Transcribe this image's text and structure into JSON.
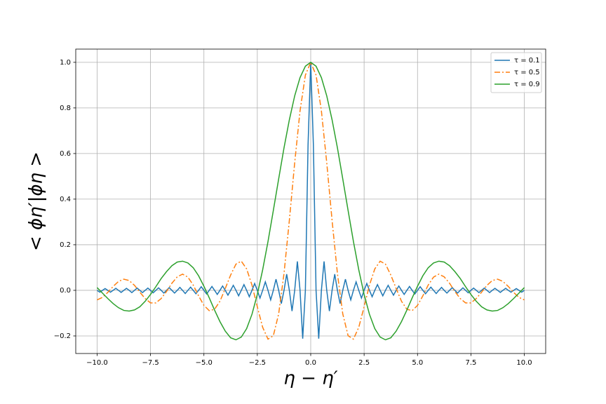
{
  "chart_data": {
    "type": "line",
    "xlabel": "η − η′",
    "ylabel": "< ϕη′|ϕη >",
    "xlim": [
      -11,
      11
    ],
    "ylim": [
      -0.277,
      1.058
    ],
    "xticks": [
      {
        "value": -10,
        "label": "−10.0"
      },
      {
        "value": -7.5,
        "label": "−7.5"
      },
      {
        "value": -5,
        "label": "−5.0"
      },
      {
        "value": -2.5,
        "label": "−2.5"
      },
      {
        "value": 0,
        "label": "0.0"
      },
      {
        "value": 2.5,
        "label": "2.5"
      },
      {
        "value": 5,
        "label": "5.0"
      },
      {
        "value": 7.5,
        "label": "7.5"
      },
      {
        "value": 10,
        "label": "10.0"
      }
    ],
    "yticks": [
      {
        "value": -0.2,
        "label": "−0.2"
      },
      {
        "value": 0,
        "label": "0.0"
      },
      {
        "value": 0.2,
        "label": "0.2"
      },
      {
        "value": 0.4,
        "label": "0.4"
      },
      {
        "value": 0.6,
        "label": "0.6"
      },
      {
        "value": 0.8,
        "label": "0.8"
      },
      {
        "value": 1,
        "label": "1.0"
      }
    ],
    "grid": true,
    "legend": "upper right",
    "series": [
      {
        "name": "τ = 0.1",
        "color": "#1f77b4",
        "dash": "none",
        "x": [
          -10,
          -9.875,
          -9.75,
          -9.625,
          -9.5,
          -9.375,
          -9.25,
          -9.125,
          -9,
          -8.875,
          -8.75,
          -8.625,
          -8.5,
          -8.375,
          -8.25,
          -8.125,
          -8,
          -7.875,
          -7.75,
          -7.625,
          -7.5,
          -7.375,
          -7.25,
          -7.125,
          -7,
          -6.875,
          -6.75,
          -6.625,
          -6.5,
          -6.375,
          -6.25,
          -6.125,
          -6,
          -5.875,
          -5.75,
          -5.625,
          -5.5,
          -5.375,
          -5.25,
          -5.125,
          -5,
          -4.875,
          -4.75,
          -4.625,
          -4.5,
          -4.375,
          -4.25,
          -4.125,
          -4,
          -3.875,
          -3.75,
          -3.625,
          -3.5,
          -3.375,
          -3.25,
          -3.125,
          -3,
          -2.875,
          -2.75,
          -2.625,
          -2.5,
          -2.375,
          -2.25,
          -2.125,
          -2,
          -1.875,
          -1.75,
          -1.625,
          -1.5,
          -1.375,
          -1.25,
          -1.125,
          -1,
          -0.875,
          -0.75,
          -0.625,
          -0.5,
          -0.375,
          -0.25,
          -0.125,
          0,
          0.125,
          0.25,
          0.375,
          0.5,
          0.625,
          0.75,
          0.875,
          1,
          1.125,
          1.25,
          1.375,
          1.5,
          1.625,
          1.75,
          1.875,
          2,
          2.125,
          2.25,
          2.375,
          2.5,
          2.625,
          2.75,
          2.875,
          3,
          3.125,
          3.25,
          3.375,
          3.5,
          3.625,
          3.75,
          3.875,
          4,
          4.125,
          4.25,
          4.375,
          4.5,
          4.625,
          4.75,
          4.875,
          5,
          5.125,
          5.25,
          5.375,
          5.5,
          5.625,
          5.75,
          5.875,
          6,
          6.125,
          6.25,
          6.375,
          6.5,
          6.625,
          6.75,
          6.875,
          7,
          7.125,
          7.25,
          7.375,
          7.5,
          7.625,
          7.75,
          7.875,
          8,
          8.125,
          8.25,
          8.375,
          8.5,
          8.625,
          8.75,
          8.875,
          9,
          9.125,
          9.25,
          9.375,
          9.5,
          9.625,
          9.75,
          9.875,
          10
        ],
        "values": [
          0,
          -0.008,
          0,
          0.008,
          0,
          -0.008,
          0,
          0.009,
          0,
          -0.009,
          0,
          0.009,
          0,
          -0.01,
          0,
          0.01,
          0,
          -0.01,
          0,
          0.01,
          0,
          -0.011,
          0,
          0.011,
          0,
          -0.012,
          0,
          0.012,
          0,
          -0.012,
          0,
          0.013,
          0,
          -0.014,
          0,
          0.014,
          0,
          -0.015,
          0,
          0.016,
          0,
          -0.016,
          0,
          0.017,
          0,
          -0.018,
          0,
          0.019,
          0,
          -0.021,
          0,
          0.022,
          0,
          -0.024,
          0,
          0.025,
          0,
          -0.028,
          0,
          0.03,
          0,
          -0.034,
          0,
          0.037,
          0,
          -0.042,
          0,
          0.049,
          0,
          -0.058,
          0,
          0.071,
          0,
          -0.091,
          0,
          0.127,
          0,
          -0.212,
          0,
          0.637,
          1,
          0.637,
          0,
          -0.212,
          0,
          0.127,
          0,
          -0.091,
          0,
          0.071,
          0,
          -0.058,
          0,
          0.049,
          0,
          -0.042,
          0,
          0.037,
          0,
          -0.034,
          0,
          0.03,
          0,
          -0.028,
          0,
          0.025,
          0,
          -0.024,
          0,
          0.022,
          0,
          -0.021,
          0,
          0.019,
          0,
          -0.018,
          0,
          0.017,
          0,
          -0.016,
          0,
          0.016,
          0,
          -0.015,
          0,
          0.014,
          0,
          -0.014,
          0,
          0.013,
          0,
          -0.012,
          0,
          0.012,
          0,
          -0.012,
          0,
          0.011,
          0,
          -0.011,
          0,
          0.01,
          0,
          -0.01,
          0,
          0.01,
          0,
          -0.01,
          0,
          0.009,
          0,
          -0.009,
          0,
          0.009,
          0,
          -0.008,
          0,
          0.008,
          0,
          -0.008,
          0
        ]
      },
      {
        "name": "τ = 0.5",
        "color": "#ff7f0e",
        "dash": "8,3,2,3",
        "x": [
          -10,
          -9.75,
          -9.5,
          -9.25,
          -9,
          -8.75,
          -8.5,
          -8.25,
          -8,
          -7.75,
          -7.5,
          -7.25,
          -7,
          -6.75,
          -6.5,
          -6.25,
          -6,
          -5.75,
          -5.5,
          -5.25,
          -5,
          -4.75,
          -4.5,
          -4.25,
          -4,
          -3.75,
          -3.5,
          -3.25,
          -3,
          -2.75,
          -2.5,
          -2.25,
          -2,
          -1.75,
          -1.5,
          -1.25,
          -1,
          -0.75,
          -0.5,
          -0.25,
          0,
          0.25,
          0.5,
          0.75,
          1,
          1.25,
          1.5,
          1.75,
          2,
          2.25,
          2.5,
          2.75,
          3,
          3.25,
          3.5,
          3.75,
          4,
          4.25,
          4.5,
          4.75,
          5,
          5.25,
          5.5,
          5.75,
          6,
          6.25,
          6.5,
          6.75,
          7,
          7.25,
          7.5,
          7.75,
          8,
          8.25,
          8.5,
          8.75,
          9,
          9.25,
          9.5,
          9.75,
          10
        ],
        "values": [
          -0.042,
          -0.031,
          -0.009,
          0.017,
          0.039,
          0.049,
          0.043,
          0.022,
          -0.008,
          -0.036,
          -0.055,
          -0.055,
          -0.036,
          -0.005,
          0.031,
          0.059,
          0.071,
          0.058,
          0.023,
          -0.024,
          -0.066,
          -0.089,
          -0.083,
          -0.048,
          0.008,
          0.067,
          0.115,
          0.128,
          0.094,
          0.023,
          -0.072,
          -0.162,
          -0.214,
          -0.199,
          -0.103,
          0.074,
          0.307,
          0.56,
          0.787,
          0.944,
          1,
          0.944,
          0.787,
          0.56,
          0.307,
          0.074,
          -0.103,
          -0.199,
          -0.214,
          -0.162,
          -0.072,
          0.023,
          0.094,
          0.128,
          0.115,
          0.067,
          0.008,
          -0.048,
          -0.083,
          -0.089,
          -0.066,
          -0.024,
          0.023,
          0.058,
          0.071,
          0.059,
          0.031,
          -0.005,
          -0.036,
          -0.055,
          -0.055,
          -0.036,
          -0.008,
          0.022,
          0.043,
          0.049,
          0.039,
          0.017,
          -0.009,
          -0.031,
          -0.042
        ]
      },
      {
        "name": "τ = 0.9",
        "color": "#2ca02c",
        "dash": "none",
        "x": [
          -10,
          -9.75,
          -9.5,
          -9.25,
          -9,
          -8.75,
          -8.5,
          -8.25,
          -8,
          -7.75,
          -7.5,
          -7.25,
          -7,
          -6.75,
          -6.5,
          -6.25,
          -6,
          -5.75,
          -5.5,
          -5.25,
          -5,
          -4.75,
          -4.5,
          -4.25,
          -4,
          -3.75,
          -3.5,
          -3.25,
          -3,
          -2.75,
          -2.5,
          -2.25,
          -2,
          -1.75,
          -1.5,
          -1.25,
          -1,
          -0.75,
          -0.5,
          -0.25,
          0,
          0.25,
          0.5,
          0.75,
          1,
          1.25,
          1.5,
          1.75,
          2,
          2.25,
          2.5,
          2.75,
          3,
          3.25,
          3.5,
          3.75,
          4,
          4.25,
          4.5,
          4.75,
          5,
          5.25,
          5.5,
          5.75,
          6,
          6.25,
          6.5,
          6.75,
          7,
          7.25,
          7.5,
          7.75,
          8,
          8.25,
          8.5,
          8.75,
          9,
          9.25,
          9.5,
          9.75,
          10
        ],
        "values": [
          0.012,
          -0.012,
          -0.036,
          -0.058,
          -0.076,
          -0.088,
          -0.091,
          -0.086,
          -0.072,
          -0.048,
          -0.018,
          0.016,
          0.052,
          0.082,
          0.108,
          0.124,
          0.128,
          0.12,
          0.099,
          0.064,
          0.018,
          -0.033,
          -0.087,
          -0.137,
          -0.179,
          -0.208,
          -0.217,
          -0.205,
          -0.168,
          -0.105,
          -0.018,
          0.09,
          0.214,
          0.35,
          0.489,
          0.625,
          0.748,
          0.853,
          0.933,
          0.983,
          1,
          0.983,
          0.933,
          0.853,
          0.748,
          0.625,
          0.489,
          0.35,
          0.214,
          0.09,
          -0.018,
          -0.105,
          -0.168,
          -0.205,
          -0.217,
          -0.208,
          -0.179,
          -0.137,
          -0.087,
          -0.033,
          0.018,
          0.064,
          0.099,
          0.12,
          0.128,
          0.124,
          0.108,
          0.082,
          0.052,
          0.016,
          -0.018,
          -0.048,
          -0.072,
          -0.086,
          -0.091,
          -0.088,
          -0.076,
          -0.058,
          -0.036,
          -0.012,
          0.012
        ]
      }
    ]
  }
}
